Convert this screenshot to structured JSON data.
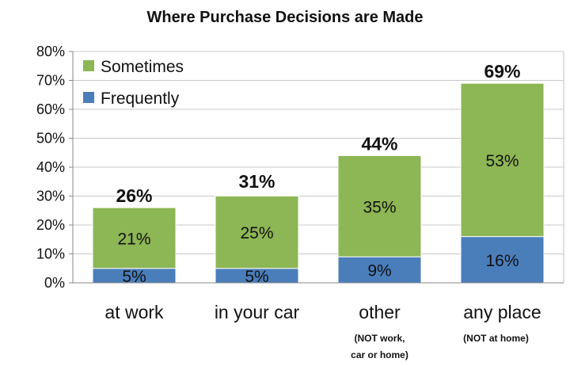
{
  "chart_data": {
    "type": "bar",
    "stacked": true,
    "title": "Where Purchase Decisions are Made",
    "categories": [
      "at work",
      "in your car",
      "other",
      "any place"
    ],
    "category_sublabels": [
      "",
      "",
      "(NOT work, car or home)",
      "(NOT at home)"
    ],
    "series": [
      {
        "name": "Frequently",
        "values": [
          5,
          5,
          9,
          16
        ],
        "color": "#4a7ebb"
      },
      {
        "name": "Sometimes",
        "values": [
          21,
          25,
          35,
          53
        ],
        "color": "#8db654"
      }
    ],
    "totals": [
      26,
      31,
      44,
      69
    ],
    "value_suffix": "%",
    "ylim": [
      0,
      80
    ],
    "yticks": [
      "0%",
      "10%",
      "20%",
      "30%",
      "40%",
      "50%",
      "60%",
      "70%",
      "80%"
    ],
    "legend_position": "top-left",
    "grid": true
  }
}
